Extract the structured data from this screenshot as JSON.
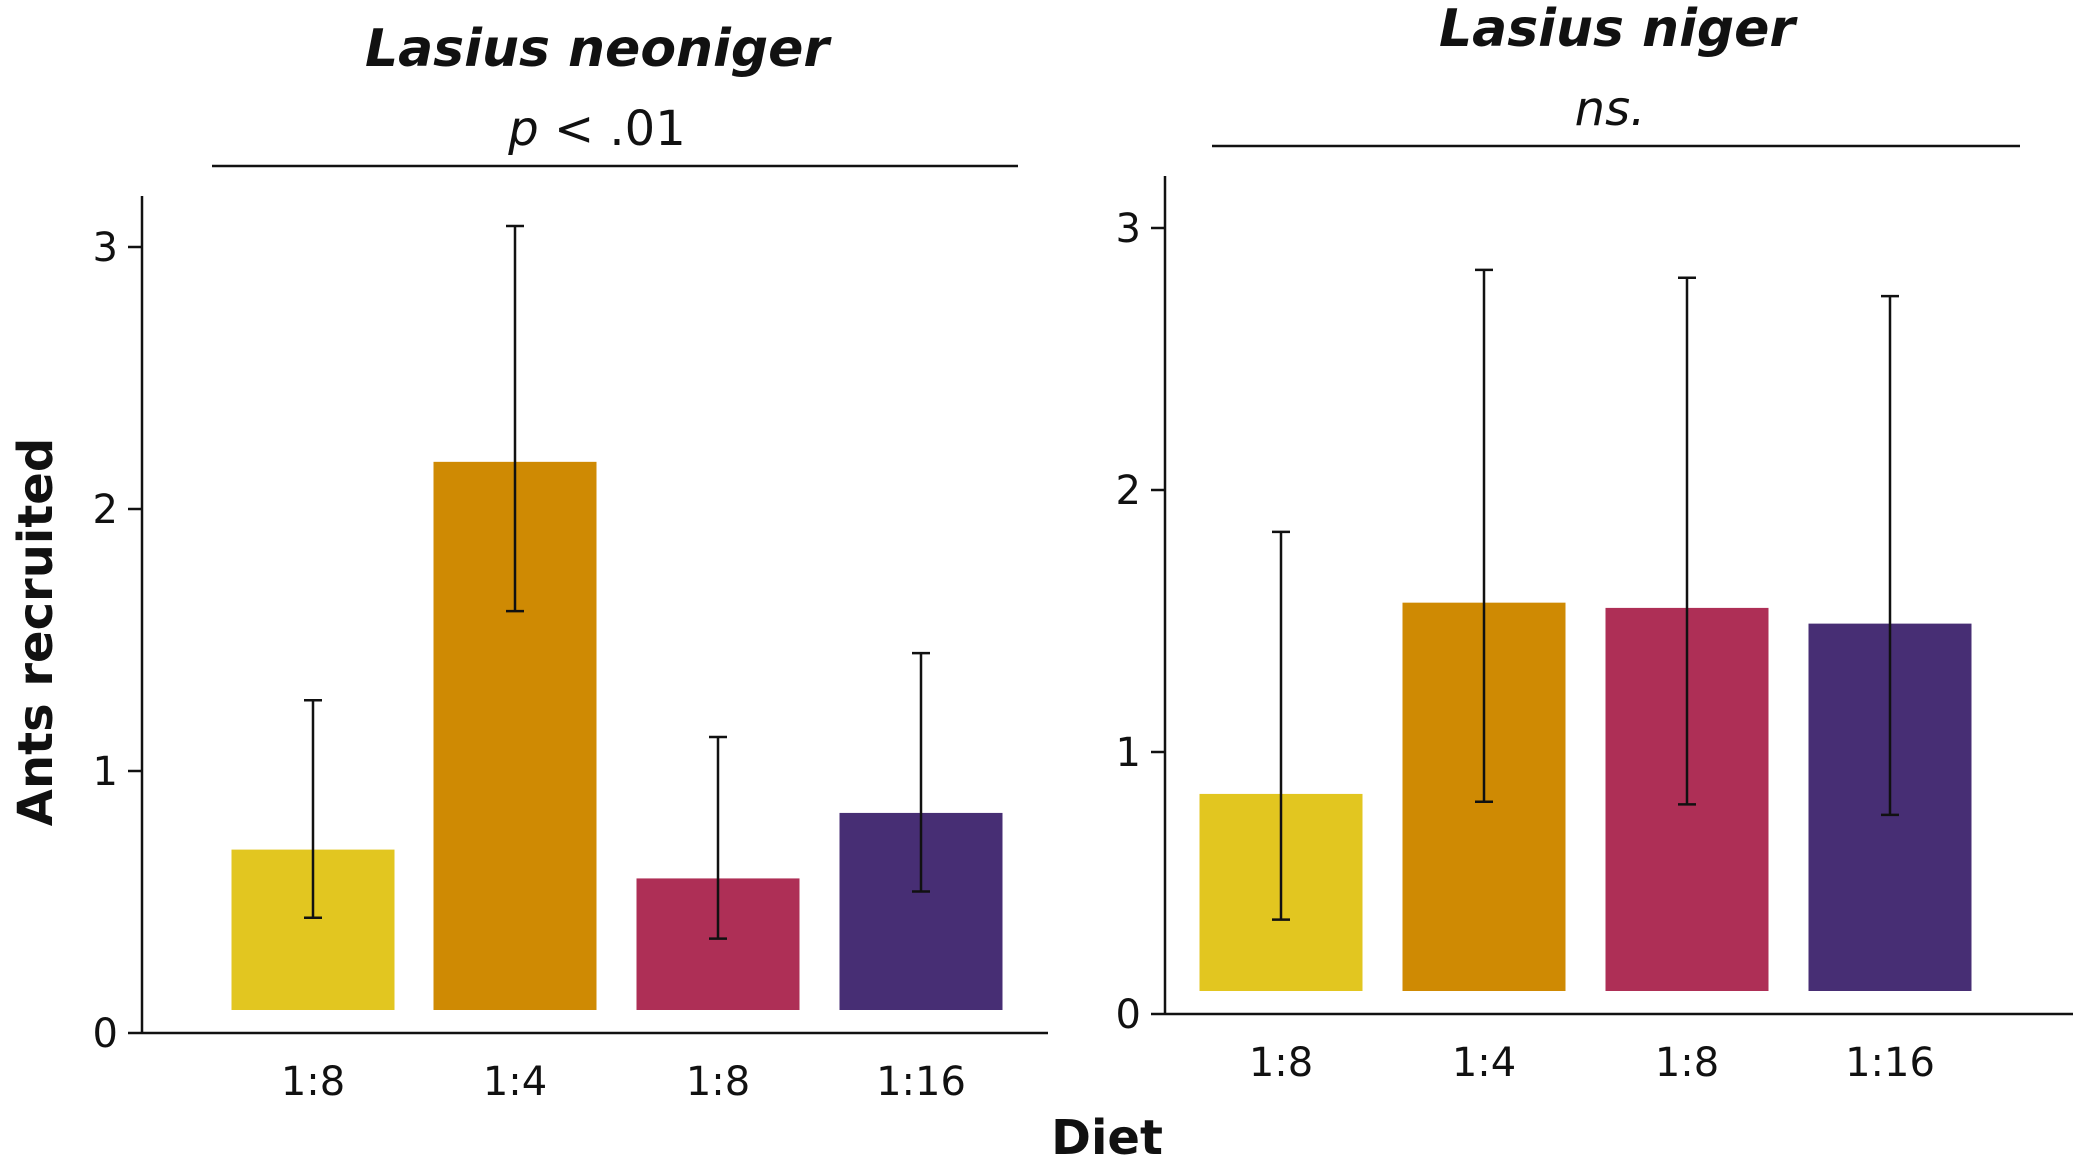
{
  "figure": {
    "ylabel": "Ants recruited",
    "xlabel": "Diet"
  },
  "chart_data": [
    {
      "type": "bar",
      "title": "Lasius neoniger",
      "significance": {
        "variable": "p",
        "text": " < .01"
      },
      "xlabel": "Diet",
      "ylabel": "Ants recruited",
      "categories": [
        "1:8",
        "1:4",
        "1:8",
        "1:16"
      ],
      "values": [
        0.7,
        2.18,
        0.59,
        0.84
      ],
      "error_low": [
        0.44,
        1.61,
        0.36,
        0.54
      ],
      "error_high": [
        1.27,
        3.08,
        1.13,
        1.45
      ],
      "colors": [
        "#e2c620",
        "#cf8a03",
        "#ae2f56",
        "#472e74"
      ],
      "ylim": [
        0,
        3.2
      ],
      "yticks": [
        "0",
        "1",
        "2",
        "3"
      ]
    },
    {
      "type": "bar",
      "title": "Lasius niger",
      "significance": {
        "variable": "",
        "text": "ns."
      },
      "xlabel": "Diet",
      "ylabel": "Ants recruited",
      "categories": [
        "1:8",
        "1:4",
        "1:8",
        "1:16"
      ],
      "values": [
        0.84,
        1.57,
        1.55,
        1.49
      ],
      "error_low": [
        0.36,
        0.81,
        0.8,
        0.76
      ],
      "error_high": [
        1.84,
        2.84,
        2.81,
        2.74
      ],
      "colors": [
        "#e2c620",
        "#cf8a03",
        "#ae2f56",
        "#472e74"
      ],
      "ylim": [
        0,
        3.2
      ],
      "yticks": [
        "0",
        "1",
        "2",
        "3"
      ]
    }
  ]
}
